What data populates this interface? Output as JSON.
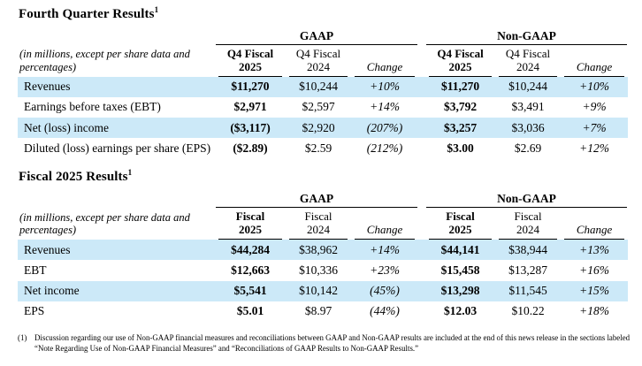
{
  "colors": {
    "highlight_row": "#cce9f8",
    "rule": "#000000",
    "text": "#000000"
  },
  "q4": {
    "title": "Fourth Quarter Results",
    "title_sup": "1",
    "caption": "(in millions, except per share data and percentages)",
    "gaap_label": "GAAP",
    "non_gaap_label": "Non-GAAP",
    "col1_l1": "Q4 Fiscal",
    "col1_l2": "2025",
    "col2_l1": "Q4 Fiscal",
    "col2_l2": "2024",
    "change_label": "Change",
    "rows": [
      {
        "label": "Revenues",
        "c": [
          "$11,270",
          "$10,244",
          "+10%",
          "$11,270",
          "$10,244",
          "+10%"
        ]
      },
      {
        "label": "Earnings before taxes (EBT)",
        "c": [
          "$2,971",
          "$2,597",
          "+14%",
          "$3,792",
          "$3,491",
          "+9%"
        ]
      },
      {
        "label": "Net (loss) income",
        "c": [
          "($3,117)",
          "$2,920",
          "(207%)",
          "$3,257",
          "$3,036",
          "+7%"
        ]
      },
      {
        "label": "Diluted (loss) earnings per share (EPS)",
        "c": [
          "($2.89)",
          "$2.59",
          "(212%)",
          "$3.00",
          "$2.69",
          "+12%"
        ]
      }
    ]
  },
  "fy": {
    "title": "Fiscal 2025 Results",
    "title_sup": "1",
    "caption": "(in millions, except per share data and percentages)",
    "gaap_label": "GAAP",
    "non_gaap_label": "Non-GAAP",
    "col1_l1": "Fiscal",
    "col1_l2": "2025",
    "col2_l1": "Fiscal",
    "col2_l2": "2024",
    "change_label": "Change",
    "rows": [
      {
        "label": "Revenues",
        "c": [
          "$44,284",
          "$38,962",
          "+14%",
          "$44,141",
          "$38,944",
          "+13%"
        ]
      },
      {
        "label": "EBT",
        "c": [
          "$12,663",
          "$10,336",
          "+23%",
          "$15,458",
          "$13,287",
          "+16%"
        ]
      },
      {
        "label": "Net income",
        "c": [
          "$5,541",
          "$10,142",
          "(45%)",
          "$13,298",
          "$11,545",
          "+15%"
        ]
      },
      {
        "label": "EPS",
        "c": [
          "$5.01",
          "$8.97",
          "(44%)",
          "$12.03",
          "$10.22",
          "+18%"
        ]
      }
    ]
  },
  "footnote": {
    "marker": "(1)",
    "text": "Discussion regarding our use of Non-GAAP financial measures and reconciliations between GAAP and Non-GAAP results are included at the end of this news release in the sections labeled “Note Regarding Use of Non-GAAP Financial Measures” and “Reconciliations of GAAP Results to Non-GAAP Results.”"
  }
}
